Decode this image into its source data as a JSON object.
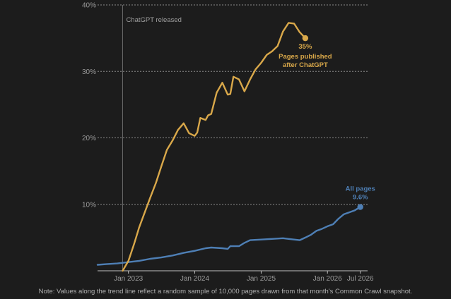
{
  "chart_data": {
    "type": "line",
    "title": "",
    "xlabel": "",
    "ylabel": "",
    "ylim": [
      0,
      40
    ],
    "xlim": [
      "2022-07-15",
      "2026-08-10"
    ],
    "y_ticks": [
      {
        "value": 10,
        "label": "10%"
      },
      {
        "value": 20,
        "label": "20%"
      },
      {
        "value": 30,
        "label": "30%"
      },
      {
        "value": 40,
        "label": "40%"
      }
    ],
    "x_ticks": [
      {
        "date": "2023-01-01",
        "label": "Jan 2023"
      },
      {
        "date": "2024-01-01",
        "label": "Jan 2024"
      },
      {
        "date": "2025-01-01",
        "label": "Jan 2025"
      },
      {
        "date": "2026-01-01",
        "label": "Jan 2026"
      },
      {
        "date": "2026-07-01",
        "label": "Jul 2026"
      }
    ],
    "grid": "horizontal",
    "annotation": {
      "date": "2022-11-30",
      "text": "ChatGPT released"
    },
    "series": [
      {
        "name": "All pages",
        "color": "#4e7fb5",
        "end_label": "All pages",
        "end_value_label": "9.6%",
        "points": [
          [
            "2022-07-15",
            0.9
          ],
          [
            "2022-09-01",
            1.0
          ],
          [
            "2022-11-01",
            1.1
          ],
          [
            "2023-01-01",
            1.3
          ],
          [
            "2023-03-01",
            1.5
          ],
          [
            "2023-05-01",
            1.8
          ],
          [
            "2023-07-01",
            2.0
          ],
          [
            "2023-09-01",
            2.3
          ],
          [
            "2023-11-01",
            2.7
          ],
          [
            "2024-01-01",
            3.0
          ],
          [
            "2024-03-01",
            3.4
          ],
          [
            "2024-04-01",
            3.5
          ],
          [
            "2024-06-01",
            3.4
          ],
          [
            "2024-07-01",
            3.3
          ],
          [
            "2024-07-15",
            3.7
          ],
          [
            "2024-09-01",
            3.7
          ],
          [
            "2024-10-01",
            4.2
          ],
          [
            "2024-11-01",
            4.6
          ],
          [
            "2025-01-01",
            4.7
          ],
          [
            "2025-03-01",
            4.8
          ],
          [
            "2025-05-01",
            4.9
          ],
          [
            "2025-06-01",
            4.8
          ],
          [
            "2025-08-01",
            4.6
          ],
          [
            "2025-09-01",
            5.0
          ],
          [
            "2025-10-01",
            5.4
          ],
          [
            "2025-11-01",
            6.0
          ],
          [
            "2025-12-01",
            6.3
          ],
          [
            "2026-01-01",
            6.7
          ],
          [
            "2026-02-01",
            7.0
          ],
          [
            "2026-03-01",
            7.8
          ],
          [
            "2026-04-01",
            8.5
          ],
          [
            "2026-05-01",
            8.8
          ],
          [
            "2026-06-01",
            9.1
          ],
          [
            "2026-07-01",
            9.6
          ]
        ]
      },
      {
        "name": "Pages published after ChatGPT",
        "color": "#d9a84a",
        "end_value_label": "35%",
        "end_label_lines": [
          "Pages published",
          "after ChatGPT"
        ],
        "points": [
          [
            "2022-11-30",
            0.0
          ],
          [
            "2023-01-01",
            1.5
          ],
          [
            "2023-02-01",
            4.0
          ],
          [
            "2023-03-01",
            6.5
          ],
          [
            "2023-04-01",
            8.8
          ],
          [
            "2023-05-01",
            11.0
          ],
          [
            "2023-06-01",
            13.2
          ],
          [
            "2023-07-01",
            15.7
          ],
          [
            "2023-08-01",
            18.2
          ],
          [
            "2023-09-01",
            19.6
          ],
          [
            "2023-10-01",
            21.2
          ],
          [
            "2023-11-01",
            22.2
          ],
          [
            "2023-12-01",
            20.7
          ],
          [
            "2024-01-01",
            20.3
          ],
          [
            "2024-01-15",
            20.8
          ],
          [
            "2024-02-01",
            23.0
          ],
          [
            "2024-03-01",
            22.7
          ],
          [
            "2024-03-15",
            23.4
          ],
          [
            "2024-04-01",
            23.6
          ],
          [
            "2024-05-01",
            26.8
          ],
          [
            "2024-06-01",
            28.3
          ],
          [
            "2024-07-01",
            26.5
          ],
          [
            "2024-07-15",
            26.6
          ],
          [
            "2024-08-01",
            29.2
          ],
          [
            "2024-09-01",
            28.8
          ],
          [
            "2024-10-01",
            27.0
          ],
          [
            "2024-11-01",
            28.8
          ],
          [
            "2024-12-01",
            30.3
          ],
          [
            "2025-01-01",
            31.3
          ],
          [
            "2025-02-01",
            32.5
          ],
          [
            "2025-03-01",
            33.0
          ],
          [
            "2025-04-01",
            33.8
          ],
          [
            "2025-05-01",
            36.0
          ],
          [
            "2025-06-01",
            37.3
          ],
          [
            "2025-07-01",
            37.2
          ],
          [
            "2025-08-01",
            35.9
          ],
          [
            "2025-09-01",
            35.0
          ]
        ]
      }
    ],
    "note": "Note: Values along the trend line reflect a random sample of 10,000 pages drawn from that month's Common Crawl snapshot."
  }
}
